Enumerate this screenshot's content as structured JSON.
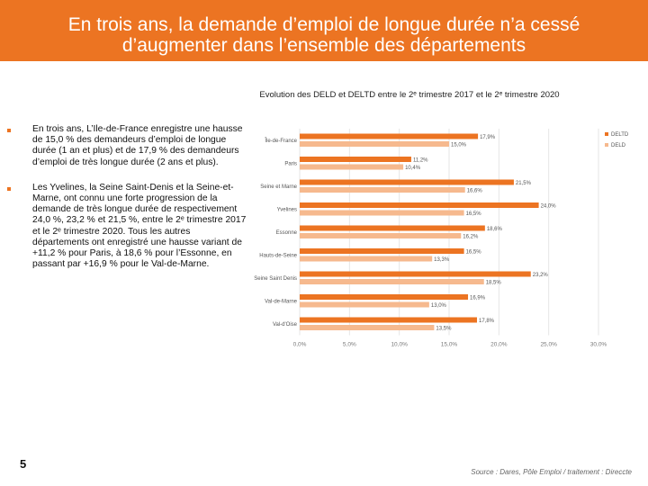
{
  "header": {
    "title_line1": "En trois ans, la demande d’emploi de longue durée n’a cessé",
    "title_line2": "d’augmenter dans l’ensemble des départements"
  },
  "chart_caption": "Evolution des DELD et DELTD entre le 2ᵉ trimestre 2017 et le 2ᵉ trimestre 2020",
  "bullets": [
    "En trois ans, L’Ile-de-France enregistre une hausse de 15,0 % des demandeurs d’emploi de longue durée (1 an et plus) et de 17,9 % des demandeurs d’emploi de très longue durée (2 ans et plus).",
    "Les Yvelines, la Seine Saint-Denis et la Seine-et-Marne, ont connu une forte progression de la demande de très longue durée de respectivement 24,0 %,  23,2 % et 21,5 %, entre le 2ᵉ trimestre 2017 et le 2ᵉ trimestre 2020. Tous les autres départements ont enregistré une hausse variant de +11,2 % pour Paris, à 18,6 % pour l’Essonne, en passant par +16,9 % pour le Val-de-Marne."
  ],
  "page_number": "5",
  "source": "Source : Dares, Pôle Emploi / traitement : Direccte",
  "colors": {
    "banner": "#ec7422",
    "deltd": "#ec7422",
    "deld": "#f6b98e",
    "grid": "#e6e6e6"
  },
  "chart_data": {
    "type": "bar",
    "orientation": "horizontal",
    "title": "Evolution des DELD et DELTD entre le 2ᵉ trimestre 2017 et le 2ᵉ trimestre 2020",
    "categories": [
      "Île-de-France",
      "Paris",
      "Seine et Marne",
      "Yvelines",
      "Essonne",
      "Hauts-de-Seine",
      "Seine Saint Denis",
      "Val-de-Marne",
      "Val-d'Oise"
    ],
    "series": [
      {
        "name": "DELTD",
        "values": [
          17.9,
          11.2,
          21.5,
          24.0,
          18.6,
          16.5,
          23.2,
          16.9,
          17.8
        ],
        "labels": [
          "17,9%",
          "11,2%",
          "21,5%",
          "24,0%",
          "18,6%",
          "16,5%",
          "23,2%",
          "16,9%",
          "17,8%"
        ]
      },
      {
        "name": "DELD",
        "values": [
          15.0,
          10.4,
          16.6,
          16.5,
          16.2,
          13.3,
          18.5,
          13.0,
          13.5
        ],
        "labels": [
          "15,0%",
          "10,4%",
          "16,6%",
          "16,5%",
          "16,2%",
          "13,3%",
          "18,5%",
          "13,0%",
          "13,5%"
        ]
      }
    ],
    "xlim": [
      0,
      30
    ],
    "xticks": [
      0,
      5,
      10,
      15,
      20,
      25,
      30
    ],
    "xtick_labels": [
      "0,0%",
      "5,0%",
      "10,0%",
      "15,0%",
      "20,0%",
      "25,0%",
      "30,0%"
    ],
    "legend": [
      "DELTD",
      "DELD"
    ],
    "legend_position": "top-right",
    "grid": true
  }
}
